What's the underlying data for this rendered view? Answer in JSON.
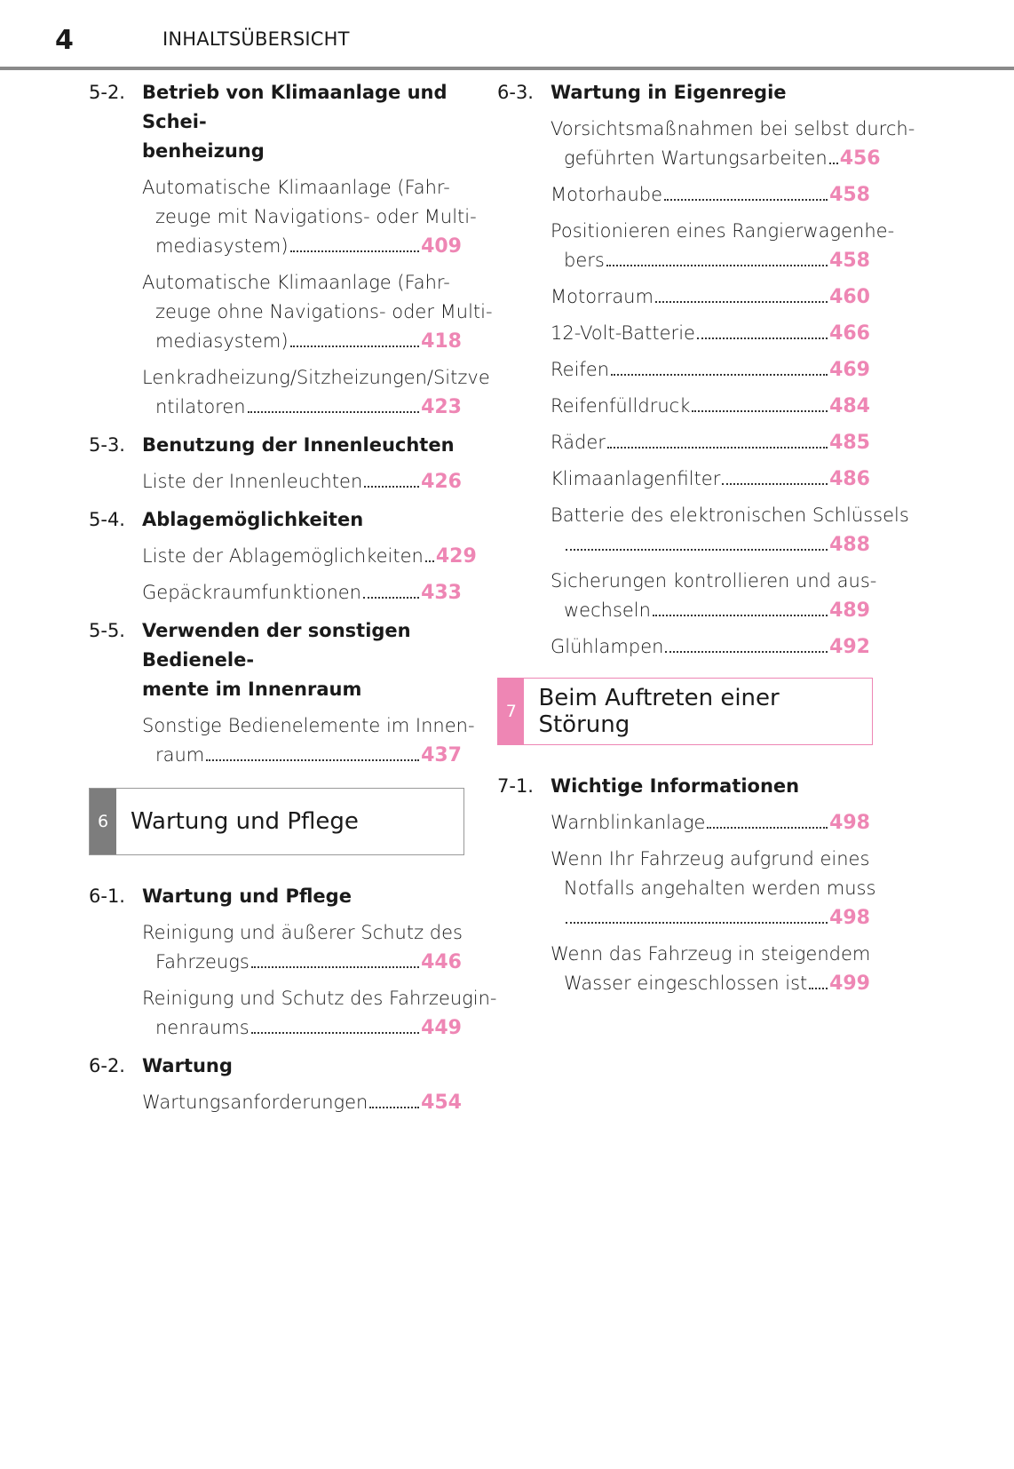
{
  "header": {
    "page_number": "4",
    "title": "INHALTSÜBERSICHT"
  },
  "colors": {
    "accent": "#ee86b4",
    "chapter6_tab": "#7d7d7d"
  },
  "left": {
    "s52": {
      "num": "5-2.",
      "title1": "Betrieb von Klimaanlage und Schei-",
      "title2": "benheizung",
      "e1": {
        "l1": "Automatische Klimaanlage (Fahr-",
        "l2": "zeuge mit Navigations- oder Multi-",
        "l3": "mediasystem)",
        "page": "409"
      },
      "e2": {
        "l1": "Automatische Klimaanlage (Fahr-",
        "l2": "zeuge ohne Navigations- oder Multi-",
        "l3": "mediasystem)",
        "page": "418"
      },
      "e3": {
        "l1": "Lenkradheizung/Sitzheizungen/Sitzve",
        "l2": "ntilatoren",
        "page": "423"
      }
    },
    "s53": {
      "num": "5-3.",
      "title1": "Benutzung der Innenleuchten",
      "e1": {
        "l1": "Liste der Innenleuchten",
        "page": "426"
      }
    },
    "s54": {
      "num": "5-4.",
      "title1": "Ablagemöglichkeiten",
      "e1": {
        "l1": "Liste der Ablagemöglichkeiten",
        "page": "429"
      },
      "e2": {
        "l1": "Gepäckraumfunktionen",
        "page": "433"
      }
    },
    "s55": {
      "num": "5-5.",
      "title1": "Verwenden der sonstigen Bedienele-",
      "title2": "mente im Innenraum",
      "e1": {
        "l1": "Sonstige Bedienelemente im Innen-",
        "l2": "raum",
        "page": "437"
      }
    },
    "chapter6": {
      "num": "6",
      "title": "Wartung und Pflege"
    },
    "s61": {
      "num": "6-1.",
      "title1": "Wartung und Pflege",
      "e1": {
        "l1": "Reinigung und äußerer Schutz des",
        "l2": "Fahrzeugs",
        "page": "446"
      },
      "e2": {
        "l1": "Reinigung und Schutz des Fahrzeugin-",
        "l2": "nenraums",
        "page": "449"
      }
    },
    "s62": {
      "num": "6-2.",
      "title1": "Wartung",
      "e1": {
        "l1": "Wartungsanforderungen",
        "page": "454"
      }
    }
  },
  "right": {
    "s63": {
      "num": "6-3.",
      "title1": "Wartung in Eigenregie",
      "e1": {
        "l1": "Vorsichtsmaßnahmen bei selbst durch-",
        "l2": "geführten Wartungsarbeiten",
        "page": "456"
      },
      "e2": {
        "l1": "Motorhaube",
        "page": "458"
      },
      "e3": {
        "l1": "Positionieren eines Rangierwagenhe-",
        "l2": "bers",
        "page": "458"
      },
      "e4": {
        "l1": "Motorraum",
        "page": "460"
      },
      "e5": {
        "l1": "12-Volt-Batterie",
        "page": "466"
      },
      "e6": {
        "l1": "Reifen",
        "page": "469"
      },
      "e7": {
        "l1": "Reifenfülldruck",
        "page": "484"
      },
      "e8": {
        "l1": "Räder",
        "page": "485"
      },
      "e9": {
        "l1": "Klimaanlagenfilter",
        "page": "486"
      },
      "e10": {
        "l1": "Batterie des elektronischen Schlüssels",
        "page": "488"
      },
      "e11": {
        "l1": "Sicherungen kontrollieren und aus-",
        "l2": "wechseln",
        "page": "489"
      },
      "e12": {
        "l1": "Glühlampen",
        "page": "492"
      }
    },
    "chapter7": {
      "num": "7",
      "title": "Beim Auftreten einer Störung"
    },
    "s71": {
      "num": "7-1.",
      "title1": "Wichtige Informationen",
      "e1": {
        "l1": "Warnblinkanlage",
        "page": "498"
      },
      "e2": {
        "l1": "Wenn Ihr Fahrzeug aufgrund eines",
        "l2": "Notfalls angehalten werden muss",
        "page": "498"
      },
      "e3": {
        "l1": "Wenn das Fahrzeug in steigendem",
        "l2": "Wasser eingeschlossen ist",
        "page": "499"
      }
    }
  }
}
